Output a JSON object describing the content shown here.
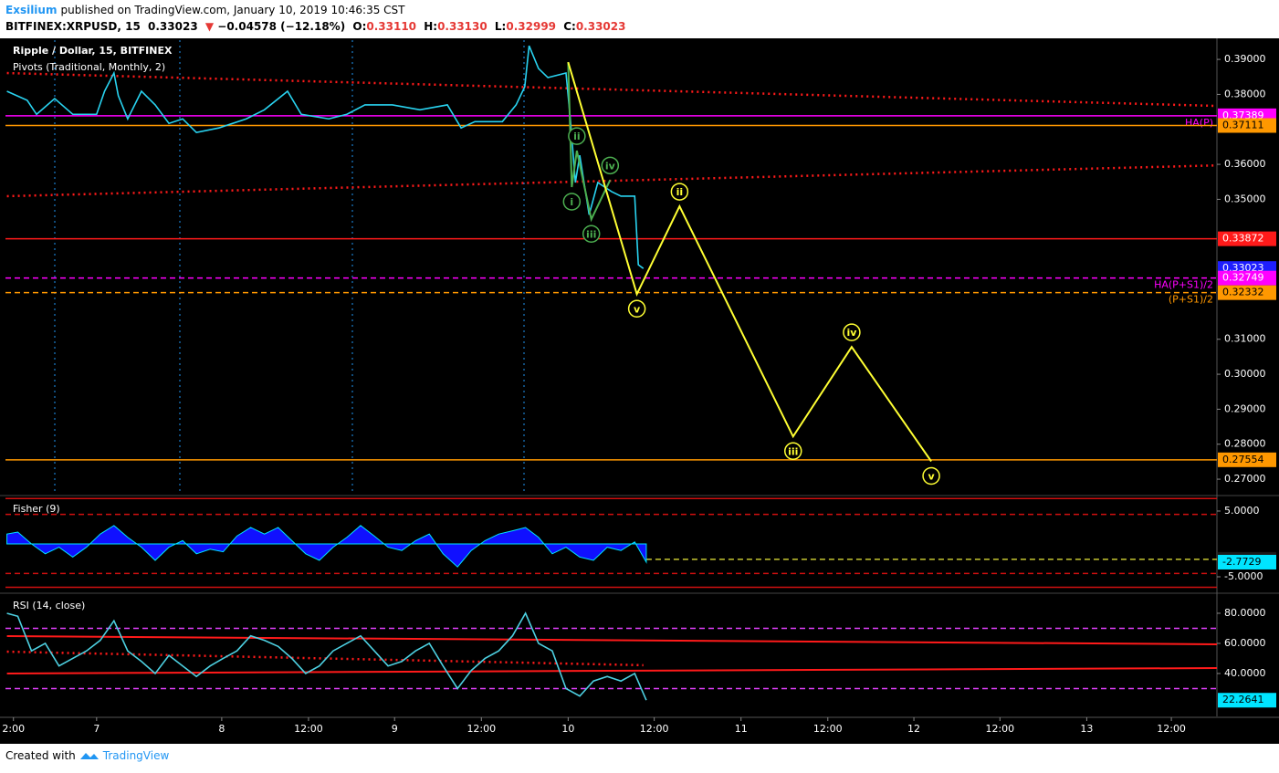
{
  "header": {
    "author": "Exsilium",
    "published": "published on TradingView.com, January 10, 2019 10:46:35 CST",
    "symbol": "BITFINEX:XRPUSD, 15",
    "last": "0.33023",
    "arrow": "▼",
    "change": "−0.04578 (−12.18%)",
    "ohlc": [
      {
        "key": "O:",
        "value": "0.33110"
      },
      {
        "key": "H:",
        "value": "0.33130"
      },
      {
        "key": "L:",
        "value": "0.32999"
      },
      {
        "key": "C:",
        "value": "0.33023"
      }
    ]
  },
  "chart_data": [
    {
      "type": "line",
      "title": "Ripple / Dollar, 15, BITFINEX",
      "subtitle": "Pivots (Traditional, Monthly, 2)",
      "color": "#29d3f0",
      "x": [
        -12.4,
        -9.6,
        -8.3,
        -5.8,
        -3.3,
        0,
        1.1,
        2.4,
        3,
        4.3,
        6.2,
        8.1,
        10,
        11.9,
        13.8,
        16.9,
        20.7,
        23.2,
        26.4,
        28.3,
        32.1,
        34.6,
        37.1,
        40.9,
        44.7,
        48.5,
        50.4,
        52.3,
        56.1,
        58,
        59.2,
        59.8,
        61.1,
        62.4,
        64.9,
        65.5,
        66.2,
        66.8,
        68.1,
        69.3,
        71.2,
        72.5,
        74.4,
        74.9,
        75.6
      ],
      "values": [
        0.3809,
        0.3783,
        0.3743,
        0.3788,
        0.3743,
        0.3743,
        0.3809,
        0.3861,
        0.3796,
        0.373,
        0.3809,
        0.377,
        0.3717,
        0.373,
        0.3691,
        0.3704,
        0.373,
        0.3756,
        0.3809,
        0.3743,
        0.373,
        0.3743,
        0.377,
        0.377,
        0.3756,
        0.377,
        0.3704,
        0.3722,
        0.3722,
        0.377,
        0.3822,
        0.3939,
        0.3874,
        0.3848,
        0.3861,
        0.373,
        0.3548,
        0.3626,
        0.3456,
        0.3548,
        0.3522,
        0.3509,
        0.3509,
        0.3313,
        0.33023
      ],
      "xlim": [
        -12.6,
        154.9
      ],
      "ylim": [
        0.2661,
        0.3955
      ],
      "yticks": [
        {
          "value": 0.39,
          "label": "0.39000"
        },
        {
          "value": 0.38,
          "label": "0.38000"
        },
        {
          "value": 0.36,
          "label": "0.36000"
        },
        {
          "value": 0.35,
          "label": "0.35000"
        },
        {
          "value": 0.31,
          "label": "0.31000"
        },
        {
          "value": 0.3,
          "label": "0.30000"
        },
        {
          "value": 0.29,
          "label": "0.29000"
        },
        {
          "value": 0.28,
          "label": "0.28000"
        },
        {
          "value": 0.27,
          "label": "0.27000"
        }
      ],
      "levels": [
        {
          "value": 0.37389,
          "color": "#ff00ff",
          "style": "solid",
          "box": "#ff00ff",
          "box_text": "#ffffff",
          "text": "HA(P)"
        },
        {
          "value": 0.37111,
          "color": "#ff9800",
          "style": "solid",
          "box": "#ff9800",
          "box_text": "#000000"
        },
        {
          "value": 0.33872,
          "color": "#ff1a1a",
          "style": "solid",
          "box": "#ff1a1a",
          "box_text": "#ffffff"
        },
        {
          "value": 0.33023,
          "color": "#1e1eff",
          "style": "none",
          "box": "#1e1eff",
          "box_text": "#ffffff"
        },
        {
          "value": 0.32749,
          "color": "#ff00ff",
          "style": "dashed",
          "box": "#ff00ff",
          "box_text": "#ffffff",
          "text": "HA(P+S1)/2"
        },
        {
          "value": 0.32332,
          "color": "#ff9800",
          "style": "dashed",
          "box": "#ff9800",
          "box_text": "#000000",
          "text": "(P+S1)/2"
        },
        {
          "value": 0.27554,
          "color": "#ff9800",
          "style": "solid",
          "box": "#ff9800",
          "box_text": "#000000"
        }
      ],
      "trendlines": [
        {
          "x": [
            -12.4,
            154.9
          ],
          "values": [
            0.3861,
            0.3767
          ],
          "color": "#ff1a1a",
          "style": "dotted"
        },
        {
          "x": [
            -12.4,
            154.9
          ],
          "values": [
            0.3509,
            0.3597
          ],
          "color": "#ff1a1a",
          "style": "dotted"
        }
      ],
      "waves": [
        {
          "color": "#4caf50",
          "x": [
            65.2,
            65.7,
            66.4,
            68.4,
            71.0
          ],
          "values": [
            0.3892,
            0.3535,
            0.3639,
            0.3443,
            0.3555
          ],
          "labels": [
            null,
            "i",
            "ii",
            "iii",
            "iv"
          ]
        },
        {
          "color": "#ffff33",
          "x": [
            65.2,
            74.7,
            80.6,
            96.3,
            104.4,
            115.4
          ],
          "values": [
            0.3892,
            0.3229,
            0.348,
            0.2822,
            0.3078,
            0.2751
          ],
          "labels": [
            null,
            "v",
            "ii",
            "iii",
            "iv",
            "v"
          ]
        }
      ]
    },
    {
      "type": "area",
      "title": "Fisher (9)",
      "color": "#1010ff",
      "x": [
        -12.4,
        -10.9,
        -9.0,
        -7.1,
        -5.2,
        -3.3,
        -1.4,
        0.5,
        2.4,
        4.3,
        6.2,
        8.1,
        10.0,
        11.9,
        13.8,
        15.7,
        17.5,
        19.4,
        21.3,
        23.2,
        25.1,
        27.0,
        28.9,
        30.8,
        32.7,
        34.6,
        36.5,
        38.4,
        40.3,
        42.2,
        44.1,
        46.0,
        47.9,
        49.9,
        51.8,
        53.7,
        55.6,
        57.5,
        59.3,
        61.1,
        63.0,
        64.9,
        66.8,
        68.7,
        70.6,
        72.5,
        74.4,
        76.0
      ],
      "values": [
        1.5,
        1.8,
        0,
        -1.5,
        -0.5,
        -2,
        -0.5,
        1.5,
        2.8,
        1,
        -0.5,
        -2.5,
        -0.5,
        0.5,
        -1.5,
        -0.8,
        -1.2,
        1.2,
        2.5,
        1.5,
        2.5,
        0.5,
        -1.5,
        -2.5,
        -0.5,
        1,
        2.8,
        1.2,
        -0.5,
        -1,
        0.5,
        1.5,
        -1.5,
        -3.5,
        -1,
        0.5,
        1.5,
        2,
        2.5,
        1,
        -1.5,
        -0.5,
        -2,
        -2.5,
        -0.5,
        -1,
        0.3,
        -2.7729
      ],
      "xlim": [
        -12.6,
        154.9
      ],
      "ylim": [
        -7.22,
        6.94
      ],
      "yticks": [
        {
          "value": 5,
          "label": "5.0000"
        },
        {
          "value": -5,
          "label": "-5.0000"
        }
      ],
      "levels": [
        {
          "value": 6.9,
          "color": "#d01010",
          "style": "solid"
        },
        {
          "value": 4.5,
          "color": "#d01010",
          "style": "dashed"
        },
        {
          "value": -4.5,
          "color": "#d01010",
          "style": "dashed"
        },
        {
          "value": -6.6,
          "color": "#d01010",
          "style": "solid"
        },
        {
          "value": -2.3472,
          "color": "#c8c832",
          "style": "dashed-right",
          "box": "#1a1a1a",
          "box_text": "#ffffff"
        },
        {
          "value": -2.7729,
          "color": "#00e5ff",
          "style": "none",
          "box": "#00e5ff",
          "box_text": "#000000"
        }
      ]
    },
    {
      "type": "line",
      "title": "RSI (14, close)",
      "color": "#4dd0e1",
      "x": [
        -12.4,
        -10.9,
        -9.0,
        -7.1,
        -5.2,
        -3.3,
        -1.4,
        0.5,
        2.4,
        4.3,
        6.2,
        8.1,
        10.0,
        11.9,
        13.8,
        15.7,
        17.5,
        19.4,
        21.3,
        23.2,
        25.1,
        27.0,
        28.9,
        30.8,
        32.7,
        34.6,
        36.5,
        38.4,
        40.3,
        42.2,
        44.1,
        46.0,
        47.9,
        49.9,
        51.8,
        53.7,
        55.6,
        57.5,
        59.3,
        61.1,
        63.0,
        64.9,
        66.8,
        68.7,
        70.6,
        72.5,
        74.4,
        76.0
      ],
      "values": [
        80,
        78,
        55,
        60,
        45,
        50,
        55,
        62,
        75,
        55,
        48,
        40,
        52,
        45,
        38,
        45,
        50,
        55,
        65,
        62,
        58,
        50,
        40,
        45,
        55,
        60,
        65,
        55,
        45,
        48,
        55,
        60,
        45,
        30,
        42,
        50,
        55,
        65,
        80,
        60,
        55,
        30,
        25,
        35,
        38,
        35,
        40,
        22.2641
      ],
      "xlim": [
        -12.6,
        154.9
      ],
      "ylim": [
        11.5,
        92.1
      ],
      "yticks": [
        {
          "value": 80,
          "label": "80.0000"
        },
        {
          "value": 60,
          "label": "60.0000"
        },
        {
          "value": 40,
          "label": "40.0000"
        }
      ],
      "levels": [
        {
          "value": 70,
          "color": "#e040fb",
          "style": "dashed"
        },
        {
          "value": 30,
          "color": "#e040fb",
          "style": "dashed"
        },
        {
          "value": 22.2641,
          "color": "#00e5ff",
          "style": "none",
          "box": "#00e5ff",
          "box_text": "#000000"
        }
      ],
      "trendlines": [
        {
          "x": [
            -12.4,
            154.9
          ],
          "values": [
            64.8,
            59.4
          ],
          "color": "#ff1a1a",
          "style": "solid"
        },
        {
          "x": [
            -12.4,
            154.9
          ],
          "values": [
            40,
            43.6
          ],
          "color": "#ff1a1a",
          "style": "solid"
        },
        {
          "x": [
            -12.4,
            75.6
          ],
          "values": [
            54.5,
            45.5
          ],
          "color": "#ff1a1a",
          "style": "dotted"
        }
      ],
      "xticks": [
        {
          "value": -11.5,
          "label": "2:00"
        },
        {
          "value": 0,
          "label": "7"
        },
        {
          "value": 17.3,
          "label": "8"
        },
        {
          "value": 29.3,
          "label": "12:00"
        },
        {
          "value": 41.2,
          "label": "9"
        },
        {
          "value": 53.2,
          "label": "12:00"
        },
        {
          "value": 65.2,
          "label": "10"
        },
        {
          "value": 77.1,
          "label": "12:00"
        },
        {
          "value": 89.1,
          "label": "11"
        },
        {
          "value": 101.1,
          "label": "12:00"
        },
        {
          "value": 113,
          "label": "12"
        },
        {
          "value": 124.9,
          "label": "12:00"
        },
        {
          "value": 136.9,
          "label": "13"
        },
        {
          "value": 148.6,
          "label": "12:00"
        }
      ]
    }
  ],
  "footer": {
    "text": "Created with",
    "brand": "TradingView"
  }
}
